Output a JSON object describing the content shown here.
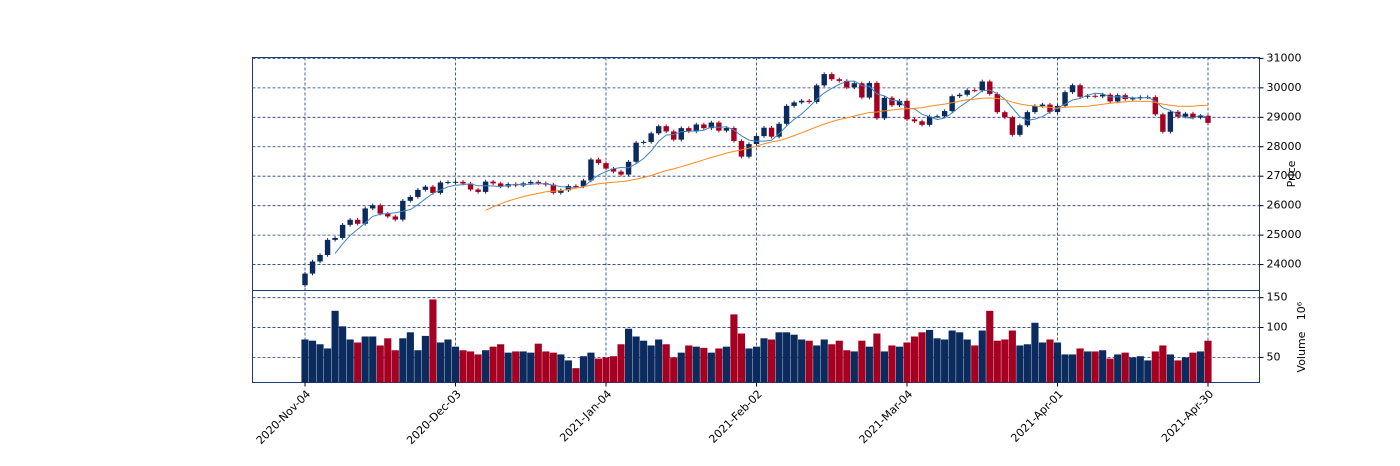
{
  "chart_data": {
    "type": "candlestick",
    "ylabel": "Price",
    "volume_label": "Volume",
    "volume_offset": "10⁶",
    "mav": [
      5,
      25
    ],
    "mav_colors": [
      "#3f86c0",
      "#ff8a1e"
    ],
    "up_color": "#0b2a5e",
    "down_color": "#a50021",
    "grid": true,
    "ylim": [
      23120,
      31030
    ],
    "yticks": [
      24000,
      25000,
      26000,
      27000,
      28000,
      29000,
      30000,
      31000
    ],
    "volume_ylim": [
      8,
      162
    ],
    "volume_yticks": [
      50,
      100,
      150
    ],
    "categories": [
      "2020-Nov-04",
      null,
      null,
      null,
      null,
      null,
      null,
      null,
      null,
      null,
      null,
      null,
      null,
      null,
      null,
      null,
      null,
      null,
      null,
      null,
      "2020-Dec-03",
      null,
      null,
      null,
      null,
      null,
      null,
      null,
      null,
      null,
      null,
      null,
      null,
      null,
      null,
      null,
      null,
      null,
      null,
      null,
      "2021-Jan-04",
      null,
      null,
      null,
      null,
      null,
      null,
      null,
      null,
      null,
      null,
      null,
      null,
      null,
      null,
      null,
      null,
      null,
      null,
      null,
      "2021-Feb-02",
      null,
      null,
      null,
      null,
      null,
      null,
      null,
      null,
      null,
      null,
      null,
      null,
      null,
      null,
      null,
      null,
      null,
      null,
      null,
      "2021-Mar-04",
      null,
      null,
      null,
      null,
      null,
      null,
      null,
      null,
      null,
      null,
      null,
      null,
      null,
      null,
      null,
      null,
      null,
      null,
      null,
      "2021-Apr-01",
      null,
      null,
      null,
      null,
      null,
      null,
      null,
      null,
      null,
      null,
      null,
      null,
      null,
      null,
      null,
      null,
      null,
      null,
      null,
      "2021-Apr-30"
    ],
    "open": [
      23300,
      23695,
      24105,
      24325,
      24839,
      24905,
      25349,
      25520,
      25385,
      25906,
      26014,
      25728,
      25634,
      25527,
      26165,
      26296,
      26537,
      26644,
      26433,
      26787,
      26800,
      26809,
      26751,
      26547,
      26467,
      26817,
      26756,
      26652,
      26732,
      26687,
      26757,
      26806,
      26763,
      26714,
      26436,
      26524,
      26668,
      26656,
      26854,
      27568,
      27444,
      27258,
      27158,
      27055,
      27490,
      28139,
      28164,
      28456,
      28698,
      28519,
      28242,
      28633,
      28523,
      28756,
      28631,
      28822,
      28546,
      28635,
      28197,
      27663,
      28091,
      28362,
      28646,
      28341,
      28779,
      29388,
      29505,
      29562,
      29520,
      30084,
      30467,
      30292,
      30236,
      30017,
      30156,
      29671,
      30168,
      28966,
      29663,
      29408,
      29559,
      28930,
      28864,
      28743,
      29028,
      29036,
      29211,
      29717,
      29766,
      29921,
      29914,
      30216,
      29792,
      29174,
      28995,
      28405,
      28729,
      29176,
      29384,
      29432,
      29178,
      29388,
      29854,
      30089,
      29696,
      29730,
      29708,
      29768,
      29538,
      29751,
      29620,
      29642,
      29683,
      29685,
      29100,
      28508,
      29188,
      29020,
      29126,
      28991,
      29053
    ],
    "high": [
      23755,
      24165,
      24385,
      24899,
      24965,
      25409,
      25580,
      25580,
      25966,
      26074,
      26074,
      25788,
      25694,
      26225,
      26356,
      26597,
      26704,
      26704,
      26847,
      26860,
      26869,
      26869,
      26811,
      26607,
      26877,
      26877,
      26816,
      26792,
      26792,
      26817,
      26866,
      26866,
      26823,
      26774,
      26584,
      26728,
      26728,
      26914,
      27628,
      27628,
      27504,
      27318,
      27218,
      27550,
      28199,
      28224,
      28516,
      28758,
      28758,
      28579,
      28693,
      28693,
      28816,
      28816,
      28882,
      28882,
      28695,
      28695,
      28257,
      28151,
      28422,
      28706,
      28706,
      28839,
      29448,
      29565,
      29622,
      29622,
      30144,
      30527,
      30527,
      30352,
      30296,
      30216,
      30216,
      30228,
      30228,
      29723,
      29723,
      29619,
      29619,
      28990,
      28924,
      29088,
      29096,
      29271,
      29777,
      29826,
      29981,
      29981,
      30276,
      30276,
      29852,
      29234,
      29055,
      28789,
      29236,
      29444,
      29492,
      29492,
      29448,
      29914,
      30149,
      30149,
      29790,
      29790,
      29828,
      29828,
      29811,
      29811,
      29702,
      29743,
      29745,
      29745,
      29160,
      29248,
      29248,
      29186,
      29186,
      29113,
      29113
    ],
    "low": [
      23240,
      23635,
      24045,
      24265,
      24779,
      24845,
      25289,
      25325,
      25325,
      25846,
      25668,
      25574,
      25467,
      25467,
      26105,
      26236,
      26477,
      26373,
      26373,
      26727,
      26740,
      26691,
      26487,
      26407,
      26407,
      26696,
      26592,
      26592,
      26627,
      26627,
      26697,
      26703,
      26654,
      26376,
      26376,
      26464,
      26596,
      26596,
      26794,
      27384,
      27198,
      27098,
      26995,
      26995,
      27430,
      28079,
      28104,
      28396,
      28459,
      28182,
      28182,
      28463,
      28463,
      28571,
      28571,
      28486,
      28486,
      28137,
      27603,
      27603,
      28031,
      28302,
      28281,
      28281,
      28719,
      29328,
      29445,
      29460,
      29460,
      30024,
      30232,
      30176,
      29957,
      29957,
      29611,
      29611,
      28906,
      28906,
      29348,
      29348,
      28870,
      28804,
      28683,
      28683,
      28968,
      28976,
      29151,
      29657,
      29706,
      29854,
      29854,
      29732,
      29114,
      28935,
      28345,
      28345,
      28669,
      29116,
      29324,
      29118,
      29118,
      29328,
      29794,
      29636,
      29636,
      29648,
      29648,
      29478,
      29478,
      29560,
      29560,
      29582,
      29623,
      29040,
      28448,
      28448,
      28960,
      28960,
      28931,
      28931,
      28752
    ],
    "close": [
      23695,
      24105,
      24325,
      24839,
      24905,
      25349,
      25520,
      25385,
      25906,
      26014,
      25728,
      25634,
      25527,
      26165,
      26296,
      26537,
      26644,
      26433,
      26787,
      26800,
      26809,
      26751,
      26547,
      26467,
      26817,
      26756,
      26652,
      26732,
      26687,
      26757,
      26806,
      26763,
      26714,
      26436,
      26524,
      26668,
      26656,
      26854,
      27568,
      27444,
      27258,
      27158,
      27055,
      27490,
      28139,
      28164,
      28456,
      28698,
      28519,
      28242,
      28633,
      28523,
      28756,
      28631,
      28822,
      28546,
      28635,
      28197,
      27663,
      28091,
      28362,
      28646,
      28341,
      28779,
      29388,
      29505,
      29562,
      29520,
      30084,
      30467,
      30292,
      30236,
      30017,
      30156,
      29671,
      30168,
      28966,
      29663,
      29408,
      29559,
      28930,
      28864,
      28743,
      29028,
      29036,
      29211,
      29717,
      29766,
      29921,
      29914,
      30216,
      29792,
      29174,
      28995,
      28405,
      28729,
      29176,
      29384,
      29432,
      29178,
      29388,
      29854,
      30089,
      29696,
      29730,
      29708,
      29768,
      29538,
      29751,
      29620,
      29642,
      29683,
      29685,
      29100,
      28508,
      29188,
      29020,
      29126,
      28991,
      29053,
      28812
    ],
    "volume": [
      80,
      78,
      72,
      65,
      128,
      102,
      80,
      75,
      85,
      85,
      70,
      82,
      62,
      82,
      92,
      62,
      86,
      147,
      75,
      80,
      68,
      62,
      60,
      55,
      62,
      68,
      72,
      58,
      60,
      60,
      58,
      73,
      60,
      58,
      55,
      45,
      32,
      52,
      58,
      48,
      50,
      52,
      72,
      98,
      85,
      78,
      70,
      80,
      72,
      50,
      58,
      70,
      68,
      66,
      58,
      65,
      68,
      122,
      90,
      65,
      68,
      82,
      80,
      92,
      92,
      88,
      80,
      78,
      70,
      80,
      72,
      78,
      62,
      60,
      78,
      68,
      90,
      60,
      70,
      68,
      75,
      85,
      92,
      96,
      82,
      80,
      95,
      92,
      80,
      70,
      95,
      128,
      78,
      80,
      95,
      70,
      72,
      108,
      75,
      80,
      75,
      55,
      55,
      65,
      60,
      60,
      62,
      48,
      55,
      58,
      50,
      52,
      45,
      60,
      70,
      55,
      45,
      50,
      58,
      60,
      78
    ]
  }
}
